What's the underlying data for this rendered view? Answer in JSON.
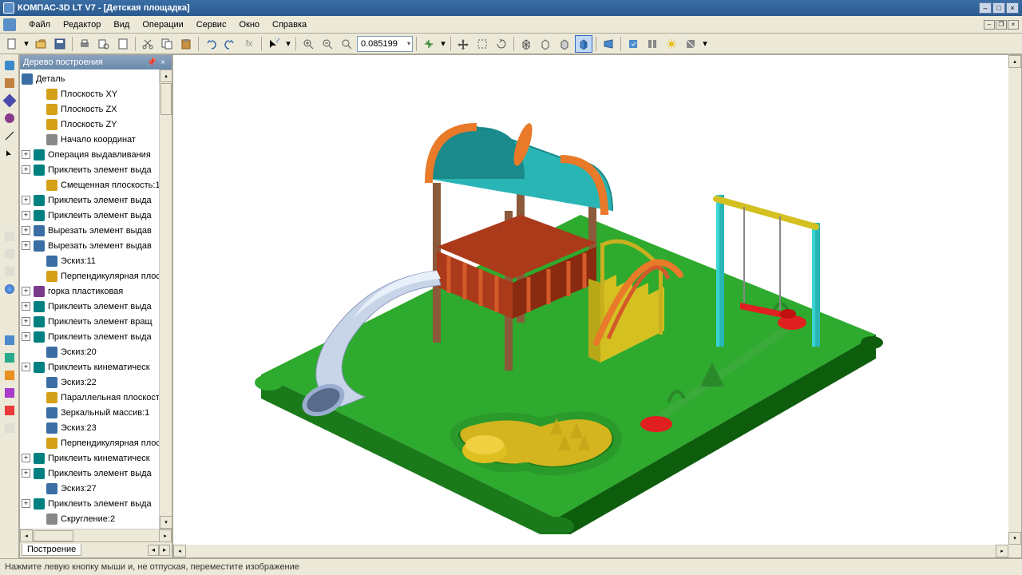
{
  "titlebar": {
    "text": "КОМПАС-3D LT V7 - [Детская площадка]"
  },
  "menubar": {
    "items": [
      "Файл",
      "Редактор",
      "Вид",
      "Операции",
      "Сервис",
      "Окно",
      "Справка"
    ]
  },
  "toolbar": {
    "zoom_value": "0.085199"
  },
  "tree": {
    "title": "Дерево построения",
    "root": "Деталь",
    "items": [
      {
        "indent": 1,
        "expand": "",
        "icon": "ic-yellow",
        "label": "Плоскость XY"
      },
      {
        "indent": 1,
        "expand": "",
        "icon": "ic-yellow",
        "label": "Плоскость ZX"
      },
      {
        "indent": 1,
        "expand": "",
        "icon": "ic-yellow",
        "label": "Плоскость ZY"
      },
      {
        "indent": 1,
        "expand": "",
        "icon": "ic-gray",
        "label": "Начало координат"
      },
      {
        "indent": 0,
        "expand": "+",
        "icon": "ic-teal",
        "label": "Операция выдавливания"
      },
      {
        "indent": 0,
        "expand": "+",
        "icon": "ic-teal",
        "label": "Приклеить элемент выда"
      },
      {
        "indent": 1,
        "expand": "",
        "icon": "ic-yellow",
        "label": "Смещенная плоскость:1"
      },
      {
        "indent": 0,
        "expand": "+",
        "icon": "ic-teal",
        "label": "Приклеить элемент выда"
      },
      {
        "indent": 0,
        "expand": "+",
        "icon": "ic-teal",
        "label": "Приклеить элемент выда"
      },
      {
        "indent": 0,
        "expand": "+",
        "icon": "ic-blue",
        "label": "Вырезать элемент выдав"
      },
      {
        "indent": 0,
        "expand": "+",
        "icon": "ic-blue",
        "label": "Вырезать элемент выдав"
      },
      {
        "indent": 1,
        "expand": "",
        "icon": "ic-blue",
        "label": "Эскиз:11"
      },
      {
        "indent": 1,
        "expand": "",
        "icon": "ic-yellow",
        "label": "Перпендикулярная плос"
      },
      {
        "indent": 0,
        "expand": "+",
        "icon": "ic-purple",
        "label": "горка пластиковая"
      },
      {
        "indent": 0,
        "expand": "+",
        "icon": "ic-teal",
        "label": "Приклеить элемент выда"
      },
      {
        "indent": 0,
        "expand": "+",
        "icon": "ic-teal",
        "label": "Приклеить элемент вращ"
      },
      {
        "indent": 0,
        "expand": "+",
        "icon": "ic-teal",
        "label": "Приклеить элемент выда"
      },
      {
        "indent": 1,
        "expand": "",
        "icon": "ic-blue",
        "label": "Эскиз:20"
      },
      {
        "indent": 0,
        "expand": "+",
        "icon": "ic-teal",
        "label": "Приклеить кинематическ"
      },
      {
        "indent": 1,
        "expand": "",
        "icon": "ic-blue",
        "label": "Эскиз:22"
      },
      {
        "indent": 1,
        "expand": "",
        "icon": "ic-yellow",
        "label": "Параллельная плоскость"
      },
      {
        "indent": 1,
        "expand": "",
        "icon": "ic-blue",
        "label": "Зеркальный массив:1"
      },
      {
        "indent": 1,
        "expand": "",
        "icon": "ic-blue",
        "label": "Эскиз:23"
      },
      {
        "indent": 1,
        "expand": "",
        "icon": "ic-yellow",
        "label": "Перпендикулярная плос"
      },
      {
        "indent": 0,
        "expand": "+",
        "icon": "ic-teal",
        "label": "Приклеить кинематическ"
      },
      {
        "indent": 0,
        "expand": "+",
        "icon": "ic-teal",
        "label": "Приклеить элемент выда"
      },
      {
        "indent": 1,
        "expand": "",
        "icon": "ic-blue",
        "label": "Эскиз:27"
      },
      {
        "indent": 0,
        "expand": "+",
        "icon": "ic-teal",
        "label": "Приклеить элемент выда"
      },
      {
        "indent": 1,
        "expand": "",
        "icon": "ic-gray",
        "label": "Скругление:2"
      }
    ],
    "tab": "Построение"
  },
  "statusbar": {
    "text": "Нажмите левую кнопку мыши и, не отпуская, переместите изображение"
  },
  "scene": {
    "base_top": "#2eaa2e",
    "base_front": "#1a7a1a",
    "base_side": "#0d5d0d",
    "roof_color": "#2ab5b5",
    "roof_shade": "#1a8a8a",
    "post_color": "#8a5a3a",
    "rail_color": "#d45a2a",
    "rail_shade": "#aa3a1a",
    "slide_color": "#c8d5e8",
    "slide_shade": "#9aadd0",
    "stair_color": "#d4c020",
    "swing_post": "#2ab5b5",
    "swing_bar": "#d4c020",
    "seesaw_color": "#3aaa3a",
    "seesaw_seat": "#e02020",
    "sandbox_rim": "#2a9a2a",
    "sandbox_sand": "#d4b520",
    "sandbox_cone": "#e0c020"
  }
}
